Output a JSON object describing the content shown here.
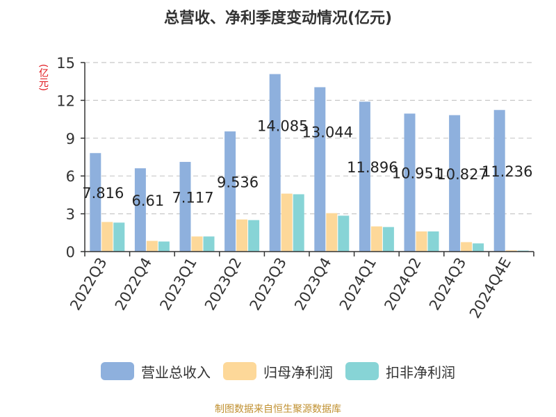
{
  "title": "总营收、净利季度变动情况(亿元)",
  "unit_label": "(亿元)",
  "source": "制图数据来自恒生聚源数据库",
  "chart_data": {
    "type": "bar",
    "categories": [
      "2022Q3",
      "2022Q4",
      "2023Q1",
      "2023Q2",
      "2023Q3",
      "2023Q4",
      "2024Q1",
      "2024Q2",
      "2024Q3",
      "2024Q4E"
    ],
    "series": [
      {
        "name": "营业总收入",
        "color": "#8eb0dd",
        "values": [
          7.816,
          6.61,
          7.117,
          9.536,
          14.085,
          13.044,
          11.896,
          10.951,
          10.827,
          11.236
        ]
      },
      {
        "name": "归母净利润",
        "color": "#fdd899",
        "values": [
          2.35,
          0.85,
          1.2,
          2.55,
          4.6,
          3.05,
          2.0,
          1.6,
          0.75,
          0.1
        ]
      },
      {
        "name": "扣非净利润",
        "color": "#87d4d6",
        "values": [
          2.3,
          0.8,
          1.2,
          2.5,
          4.55,
          2.85,
          1.95,
          1.6,
          0.65,
          0.08
        ]
      }
    ],
    "data_labels": [
      "7.816",
      "6.61",
      "7.117",
      "9.536",
      "14.085",
      "13.044",
      "11.896",
      "10.951",
      "10.827",
      "11.236"
    ],
    "ylim": [
      0,
      15
    ],
    "yticks": [
      "0",
      "3",
      "6",
      "9",
      "12",
      "15"
    ],
    "grid": true,
    "legend_position": "bottom"
  }
}
